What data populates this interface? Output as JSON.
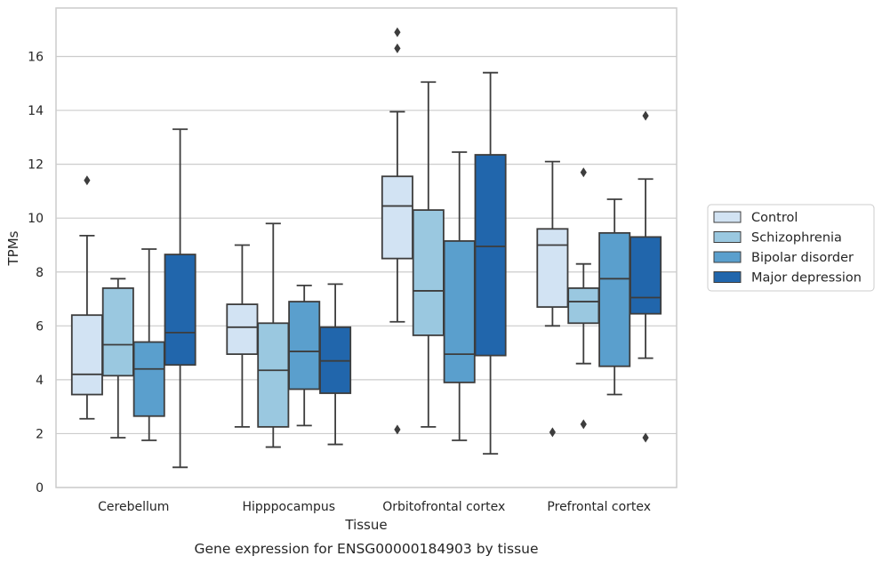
{
  "chart_data": {
    "type": "box",
    "xlabel": "Tissue",
    "ylabel": "TPMs",
    "caption": "Gene expression for ENSG00000184903 by tissue",
    "ylim": [
      0,
      17.8
    ],
    "yticks": [
      0,
      2,
      4,
      6,
      8,
      10,
      12,
      14,
      16
    ],
    "grid": "horizontal",
    "legend_position": "right",
    "categories": [
      "Cerebellum",
      "Hipppocampus",
      "Orbitofrontal cortex",
      "Prefrontal cortex"
    ],
    "series": [
      {
        "name": "Control",
        "color": "#d2e3f3",
        "boxes": [
          {
            "q1": 3.45,
            "median": 4.2,
            "q3": 6.4,
            "whislo": 2.55,
            "whishi": 9.35,
            "fliers": [
              11.4
            ]
          },
          {
            "q1": 4.95,
            "median": 5.95,
            "q3": 6.8,
            "whislo": 2.25,
            "whishi": 9.0,
            "fliers": []
          },
          {
            "q1": 8.5,
            "median": 10.45,
            "q3": 11.55,
            "whislo": 6.15,
            "whishi": 13.95,
            "fliers": [
              16.9,
              16.3,
              2.15
            ]
          },
          {
            "q1": 6.7,
            "median": 9.0,
            "q3": 9.6,
            "whislo": 6.0,
            "whishi": 12.1,
            "fliers": [
              2.05
            ]
          }
        ]
      },
      {
        "name": "Schizophrenia",
        "color": "#9ac8e0",
        "boxes": [
          {
            "q1": 4.15,
            "median": 5.3,
            "q3": 7.4,
            "whislo": 1.85,
            "whishi": 7.75,
            "fliers": []
          },
          {
            "q1": 2.25,
            "median": 4.35,
            "q3": 6.1,
            "whislo": 1.5,
            "whishi": 9.8,
            "fliers": []
          },
          {
            "q1": 5.65,
            "median": 7.3,
            "q3": 10.3,
            "whislo": 2.25,
            "whishi": 15.05,
            "fliers": []
          },
          {
            "q1": 6.1,
            "median": 6.9,
            "q3": 7.4,
            "whislo": 4.6,
            "whishi": 8.3,
            "fliers": [
              11.7,
              2.35
            ]
          }
        ]
      },
      {
        "name": "Bipolar disorder",
        "color": "#5a9fcd",
        "boxes": [
          {
            "q1": 2.65,
            "median": 4.4,
            "q3": 5.4,
            "whislo": 1.75,
            "whishi": 8.85,
            "fliers": []
          },
          {
            "q1": 3.65,
            "median": 5.05,
            "q3": 6.9,
            "whislo": 2.3,
            "whishi": 7.5,
            "fliers": []
          },
          {
            "q1": 3.9,
            "median": 4.95,
            "q3": 9.15,
            "whislo": 1.75,
            "whishi": 12.45,
            "fliers": []
          },
          {
            "q1": 4.5,
            "median": 7.75,
            "q3": 9.45,
            "whislo": 3.45,
            "whishi": 10.7,
            "fliers": []
          }
        ]
      },
      {
        "name": "Major depression",
        "color": "#2166ac",
        "boxes": [
          {
            "q1": 4.55,
            "median": 5.75,
            "q3": 8.65,
            "whislo": 0.75,
            "whishi": 13.3,
            "fliers": []
          },
          {
            "q1": 3.5,
            "median": 4.7,
            "q3": 5.95,
            "whislo": 1.6,
            "whishi": 7.55,
            "fliers": []
          },
          {
            "q1": 4.9,
            "median": 8.95,
            "q3": 12.35,
            "whislo": 1.25,
            "whishi": 15.4,
            "fliers": []
          },
          {
            "q1": 6.45,
            "median": 7.05,
            "q3": 9.3,
            "whislo": 4.8,
            "whishi": 11.45,
            "fliers": [
              13.8,
              1.85
            ]
          }
        ]
      }
    ]
  }
}
